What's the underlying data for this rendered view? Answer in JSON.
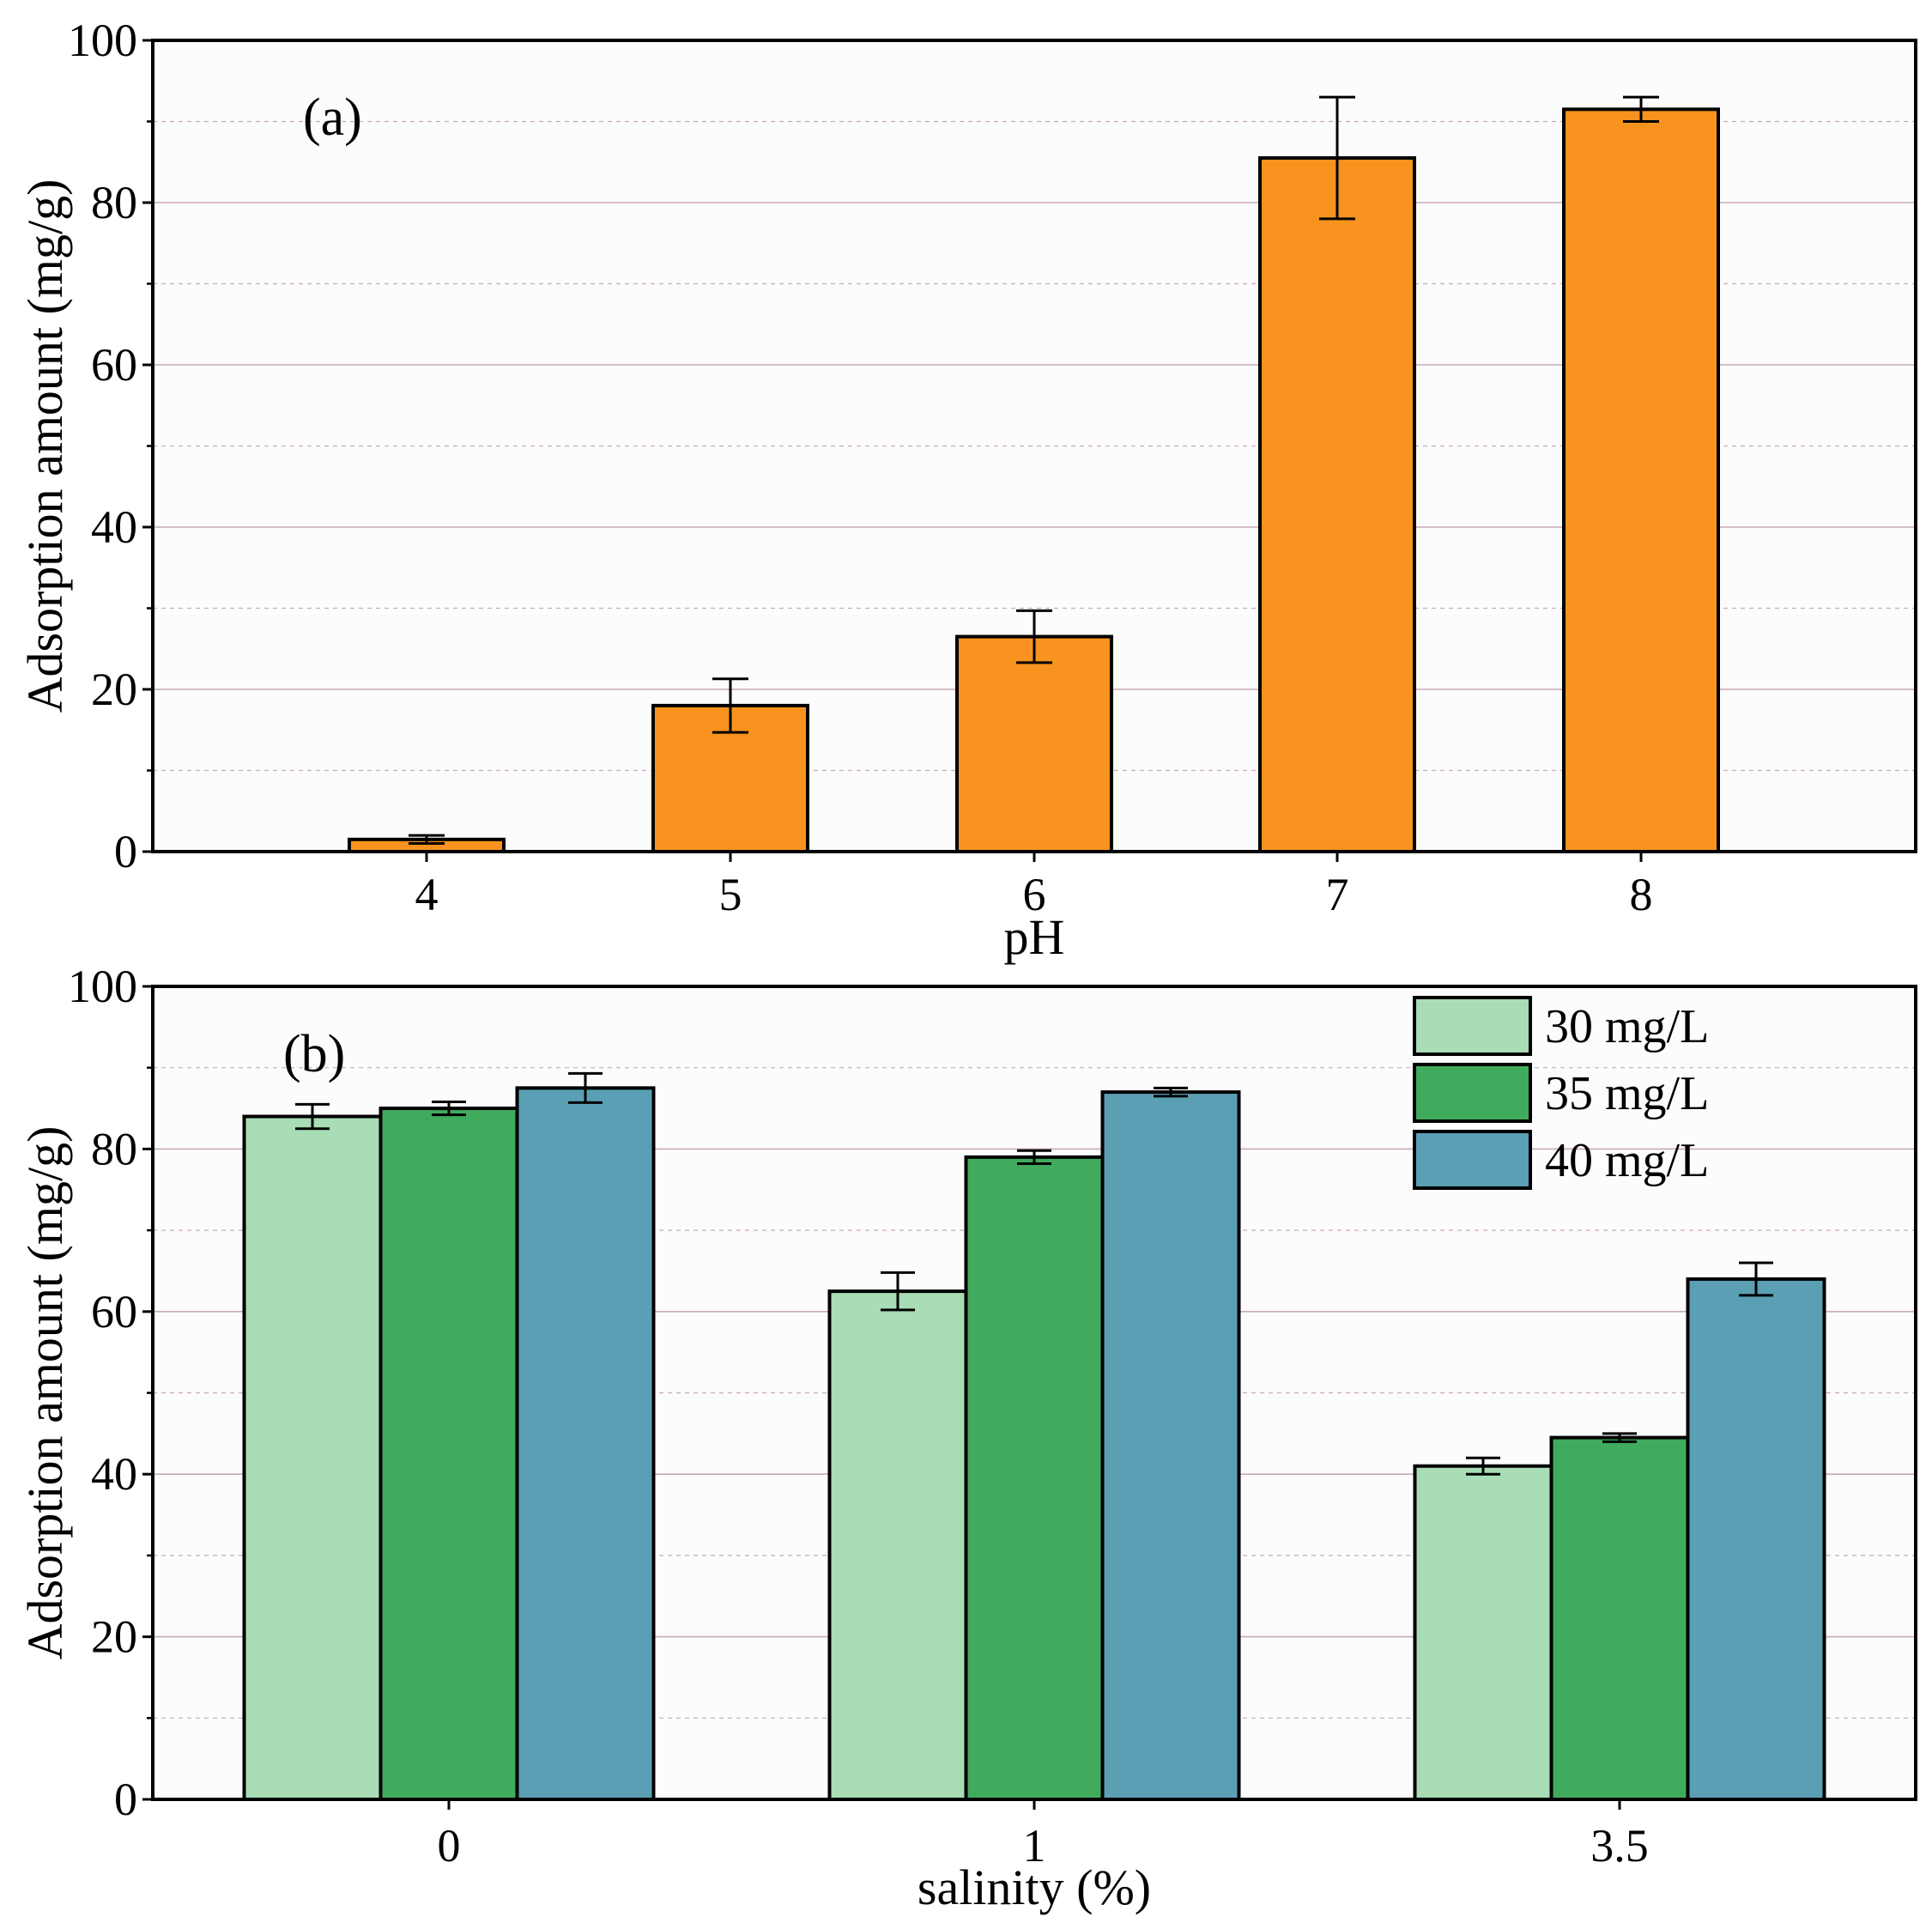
{
  "colors": {
    "ph_bar": "#F7931E",
    "conc_30": "#A8DDB5",
    "conc_35": "#41AB5D",
    "conc_40": "#5B9FB5",
    "gridline": "#C9A9B7",
    "axis": "#000000"
  },
  "chart_data": [
    {
      "type": "bar",
      "panel_label": "(a)",
      "categories": [
        "4",
        "5",
        "6",
        "7",
        "8"
      ],
      "values": [
        1.5,
        18,
        26.5,
        85.5,
        91.5
      ],
      "errors": [
        0.5,
        3.3,
        3.2,
        7.5,
        1.5
      ],
      "xlabel": "pH",
      "ylabel": "Adsorption amount (mg/g)",
      "ylim": [
        0,
        100
      ],
      "yticks": [
        "0",
        "20",
        "40",
        "60",
        "80",
        "100"
      ],
      "grid": true
    },
    {
      "type": "bar",
      "panel_label": "(b)",
      "categories": [
        "0",
        "1",
        "3.5"
      ],
      "series": [
        {
          "name": "30 mg/L",
          "values": [
            84,
            62.5,
            41
          ],
          "errors": [
            1.5,
            2.3,
            1.0
          ]
        },
        {
          "name": "35 mg/L",
          "values": [
            85,
            79,
            44.5
          ],
          "errors": [
            0.8,
            0.8,
            0.5
          ]
        },
        {
          "name": "40 mg/L",
          "values": [
            87.5,
            87,
            64
          ],
          "errors": [
            1.8,
            0.5,
            2.0
          ]
        }
      ],
      "xlabel": "salinity (%)",
      "ylabel": "Adsorption amount (mg/g)",
      "ylim": [
        0,
        100
      ],
      "yticks": [
        "0",
        "20",
        "40",
        "60",
        "80",
        "100"
      ],
      "legend_position": "top-right",
      "grid": true
    }
  ]
}
